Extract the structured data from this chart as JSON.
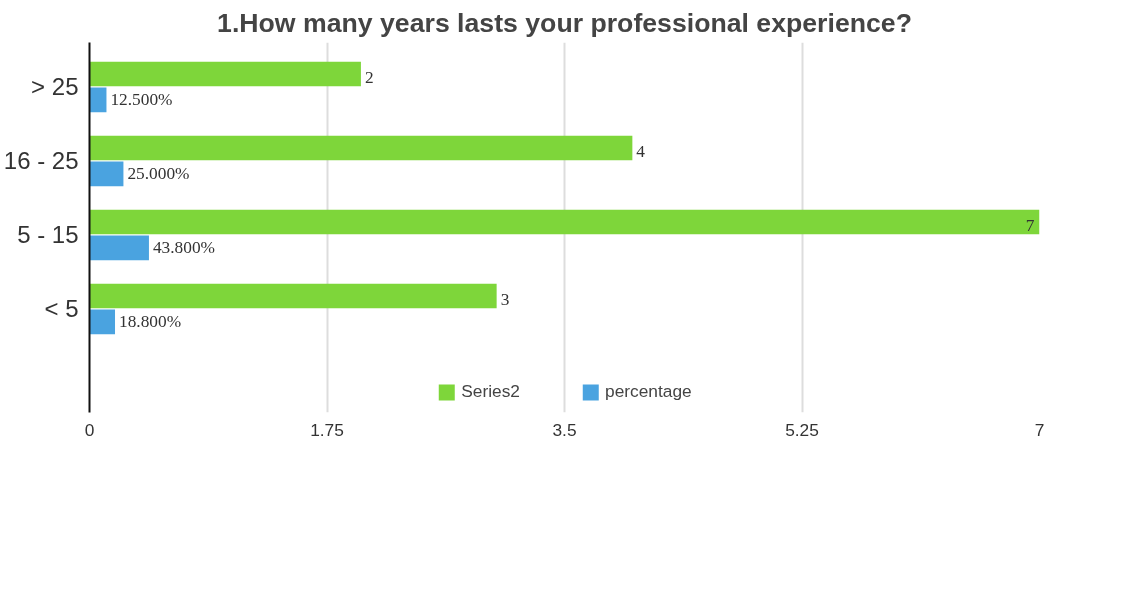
{
  "chart_data": {
    "type": "bar",
    "orientation": "horizontal",
    "title": "1.How many years lasts your professional experience?",
    "categories": [
      "> 25",
      "16 - 25",
      "5 - 15",
      "< 5"
    ],
    "series": [
      {
        "name": "Series2",
        "color": "#7ed63a",
        "values": [
          2,
          4,
          7,
          3
        ],
        "value_labels": [
          "2",
          "4",
          "7",
          "3"
        ]
      },
      {
        "name": "percentage",
        "color": "#4aa3e0",
        "values": [
          0.125,
          0.25,
          0.438,
          0.188
        ],
        "value_labels": [
          "12.500%",
          "25.000%",
          "43.800%",
          "18.800%"
        ]
      }
    ],
    "xlim": [
      0,
      7
    ],
    "xticks": [
      0,
      1.75,
      3.5,
      5.25,
      7
    ],
    "grid": "x",
    "legend": "bottom"
  }
}
